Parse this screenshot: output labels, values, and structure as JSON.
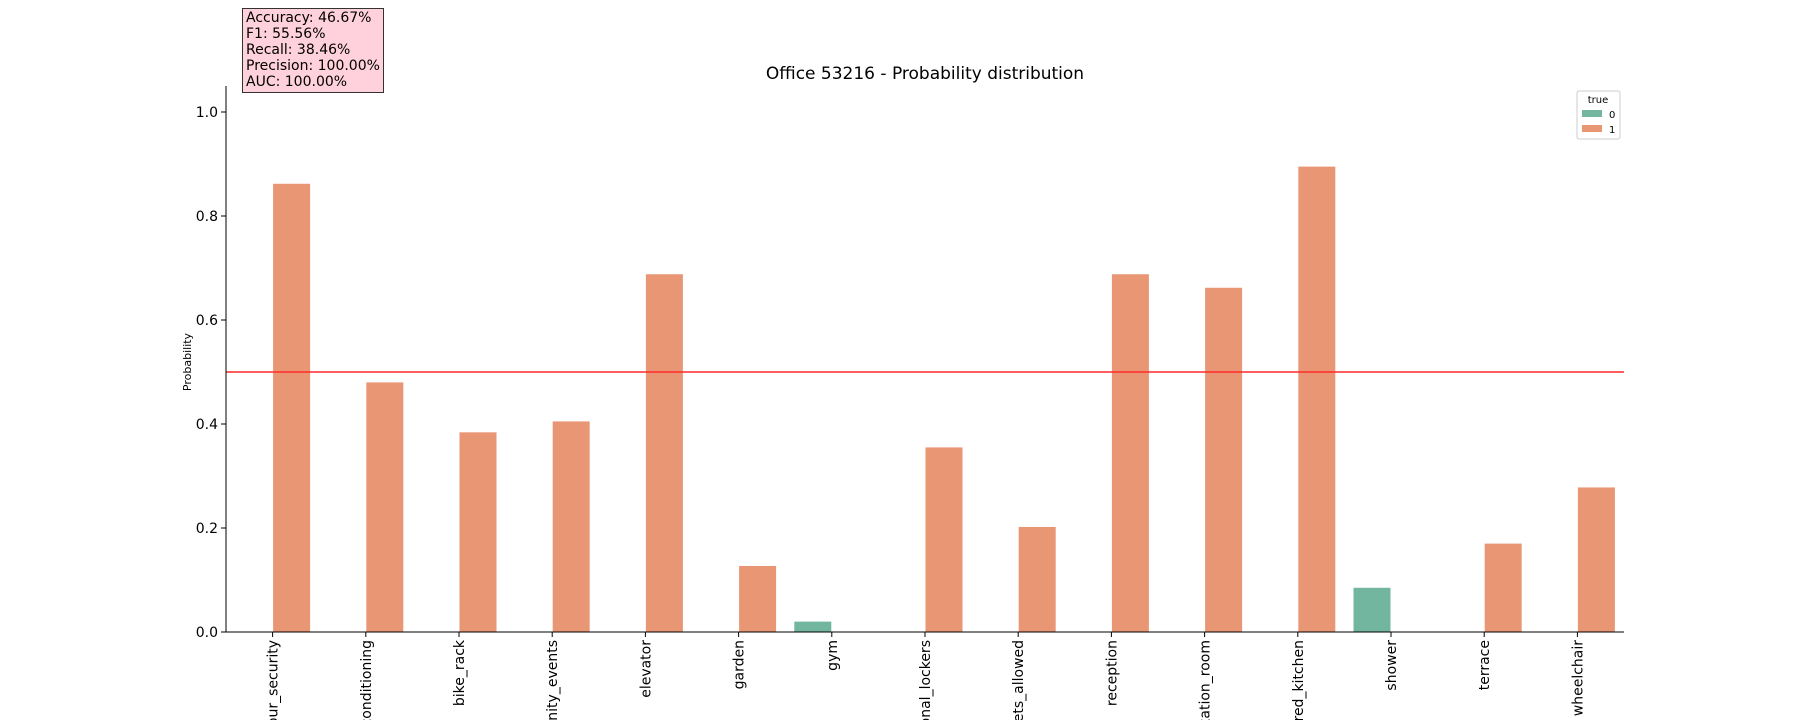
{
  "metrics": {
    "accuracy": "Accuracy: 46.67%",
    "f1": "F1: 55.56%",
    "recall": "Recall: 38.46%",
    "precision": "Precision: 100.00%",
    "auc": "AUC: 100.00%"
  },
  "colors": {
    "class_0": "#72b6a0",
    "class_1": "#e99674",
    "threshold": "#ff2a2a",
    "metrics_box": "#ffd1dc"
  },
  "chart_data": {
    "type": "bar",
    "title": "Office 53216 - Probability distribution",
    "xlabel": "",
    "ylabel": "Probability",
    "ylim": [
      0,
      1.05
    ],
    "yticks": [
      "0.0",
      "0.2",
      "0.4",
      "0.6",
      "0.8",
      "1.0"
    ],
    "categories": [
      "our_security",
      "conditioning",
      "bike_rack",
      "unity_events",
      "elevator",
      "garden",
      "gym",
      "onal_lockers",
      "pets_allowed",
      "reception",
      "xation_room",
      "ared_kitchen",
      "shower",
      "terrace",
      "wheelchair"
    ],
    "legend": {
      "title": "true",
      "entries": [
        "0",
        "1"
      ],
      "position": "top-right"
    },
    "threshold": 0.5,
    "series": [
      {
        "name": "0",
        "values": [
          null,
          null,
          null,
          null,
          null,
          null,
          0.02,
          null,
          null,
          null,
          null,
          null,
          0.085,
          null,
          null
        ]
      },
      {
        "name": "1",
        "values": [
          0.862,
          0.48,
          0.384,
          0.405,
          0.688,
          0.127,
          null,
          0.355,
          0.202,
          0.688,
          0.662,
          0.895,
          null,
          0.17,
          0.278
        ]
      }
    ]
  }
}
